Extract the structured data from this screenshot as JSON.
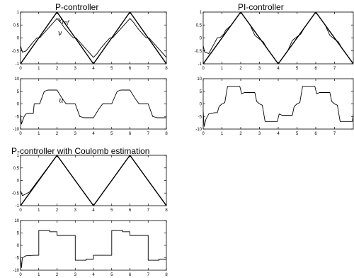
{
  "chart_data": [
    {
      "type": "line",
      "title": "P-controller",
      "xlim": [
        0,
        8
      ],
      "ylim": [
        -1,
        1
      ],
      "xticks": [
        "0",
        "1",
        "2",
        "3",
        "4",
        "5",
        "6",
        "7",
        "8"
      ],
      "yticks": [
        "-1",
        "-0.5",
        "0",
        "0.5",
        "1"
      ],
      "annotations": [
        "v_ref",
        "v"
      ],
      "series": [
        {
          "name": "v_ref",
          "x": [
            0,
            2,
            4,
            6,
            8
          ],
          "y": [
            -1,
            1,
            -1,
            1,
            -1
          ]
        },
        {
          "name": "v",
          "x": [
            0,
            0.1,
            0.3,
            0.7,
            0.9,
            1.05,
            1.3,
            2.0,
            2.2,
            2.4,
            2.7,
            2.9,
            3.05,
            3.3,
            4.0,
            4.2,
            4.4,
            4.7,
            4.9,
            5.05,
            5.3,
            6.0,
            6.2,
            6.4,
            6.7,
            6.9,
            7.05,
            7.3,
            8.0
          ],
          "y": [
            -0.3,
            -0.55,
            -0.5,
            -0.15,
            0,
            0,
            0.2,
            0.75,
            0.6,
            0.4,
            0.15,
            0,
            0,
            -0.2,
            -0.75,
            -0.6,
            -0.4,
            -0.15,
            0,
            0,
            0.2,
            0.75,
            0.6,
            0.4,
            0.15,
            0,
            0,
            -0.2,
            -0.75
          ]
        }
      ]
    },
    {
      "type": "line",
      "title": "PI-controller",
      "xlim": [
        0,
        8
      ],
      "ylim": [
        -1,
        1
      ],
      "xticks": [
        "0",
        "1",
        "2",
        "3",
        "4",
        "5",
        "6",
        "7"
      ],
      "yticks": [
        "-1",
        "-0.5",
        "0",
        "0.5",
        "1"
      ],
      "series": [
        {
          "name": "v_ref",
          "x": [
            0,
            2,
            4,
            6,
            8
          ],
          "y": [
            -1,
            1,
            -1,
            1,
            -1
          ]
        },
        {
          "name": "v",
          "x": [
            0,
            0.08,
            0.3,
            0.6,
            0.75,
            0.9,
            1.1,
            1.2,
            1.5,
            2.0,
            2.5,
            2.75,
            2.95,
            3.2,
            3.4,
            4.0,
            4.5,
            4.75,
            4.95,
            5.2,
            5.4,
            6.0,
            6.5,
            6.75,
            6.95,
            7.2,
            7.4,
            8.0
          ],
          "y": [
            -0.3,
            -0.55,
            -0.6,
            -0.2,
            0,
            0.02,
            0.15,
            0.3,
            0.5,
            1,
            0.5,
            0.1,
            -0.02,
            -0.15,
            -0.4,
            -1,
            -0.5,
            -0.1,
            0.02,
            0.15,
            0.4,
            1,
            0.5,
            0.1,
            -0.02,
            -0.15,
            -0.4,
            -1
          ]
        }
      ]
    },
    {
      "type": "line",
      "title": "",
      "xlim": [
        0,
        8
      ],
      "ylim": [
        -10,
        10
      ],
      "xticks": [
        "0",
        "1",
        "2",
        "3",
        "4",
        "5",
        "6",
        "7",
        "8"
      ],
      "yticks": [
        "-10",
        "-5",
        "0",
        "5",
        "10"
      ],
      "annotations": [
        "u"
      ],
      "series": [
        {
          "name": "u",
          "x": [
            0,
            0.05,
            0.1,
            0.2,
            0.3,
            0.5,
            0.7,
            0.75,
            1.0,
            1.05,
            1.3,
            1.5,
            1.9,
            2.0,
            2.3,
            2.5,
            2.9,
            3.0,
            3.25,
            3.5,
            3.9,
            4.0,
            4.3,
            4.5,
            4.9,
            5.0,
            5.3,
            5.5,
            5.9,
            6.0,
            6.3,
            6.5,
            6.9,
            7.0,
            7.25,
            7.5,
            8.0
          ],
          "y": [
            -4,
            -8,
            -7,
            -5,
            -4,
            -3.8,
            -3.8,
            0,
            0,
            0,
            5,
            5.5,
            5.5,
            5.5,
            2,
            0,
            0,
            0,
            -5,
            -5.5,
            -5.5,
            -5.5,
            -2,
            0,
            0,
            0,
            5,
            5.5,
            5.5,
            5.5,
            2,
            0,
            0,
            0,
            -5,
            -5.5,
            -5.5
          ]
        }
      ]
    },
    {
      "type": "line",
      "title": "",
      "xlim": [
        0,
        8
      ],
      "ylim": [
        -10,
        10
      ],
      "xticks": [
        "0",
        "1",
        "2",
        "3",
        "4",
        "5",
        "6",
        "7"
      ],
      "yticks": [
        "-10",
        "-5",
        "0",
        "5",
        "10"
      ],
      "series": [
        {
          "name": "u",
          "x": [
            0,
            0.05,
            0.15,
            0.3,
            0.6,
            0.75,
            0.85,
            1.0,
            1.15,
            1.3,
            1.7,
            1.95,
            2.05,
            2.2,
            2.5,
            2.75,
            2.85,
            3.0,
            3.15,
            3.3,
            3.7,
            3.95,
            4.05,
            4.2,
            4.5,
            4.75,
            4.85,
            5.0,
            5.15,
            5.3,
            5.7,
            5.95,
            6.05,
            6.2,
            6.5,
            6.75,
            6.85,
            7.0,
            7.15,
            7.3,
            7.7,
            7.95,
            8.0
          ],
          "y": [
            -3,
            -9,
            -6,
            -4,
            -3.5,
            -3.5,
            -1,
            0,
            0.5,
            7,
            7,
            7,
            4,
            4.5,
            4.5,
            4.5,
            1,
            0,
            -0.5,
            -7,
            -7,
            -7,
            -4,
            -4.5,
            -4.5,
            -4.5,
            -1,
            0,
            0.5,
            7,
            7,
            7,
            4,
            4.5,
            4.5,
            4.5,
            1,
            0,
            -0.5,
            -7,
            -7,
            -7,
            -4
          ]
        }
      ]
    },
    {
      "type": "line",
      "title": "P-controller with Coulomb estimation",
      "xlim": [
        0,
        8
      ],
      "ylim": [
        -1,
        1
      ],
      "xticks": [
        "0",
        "1",
        "2",
        "3",
        "4",
        "5",
        "6",
        "7",
        "8"
      ],
      "yticks": [
        "-1",
        "-0.5",
        "0",
        "0.5",
        "1"
      ],
      "series": [
        {
          "name": "v_ref",
          "x": [
            0,
            2,
            4,
            6,
            8
          ],
          "y": [
            -1,
            1,
            -1,
            1,
            -1
          ]
        },
        {
          "name": "v",
          "x": [
            0,
            0.1,
            0.25,
            0.5,
            2.0,
            4.0,
            6.0,
            8.0
          ],
          "y": [
            -0.4,
            -0.6,
            -0.55,
            -0.45,
            1,
            -1,
            1,
            -1
          ]
        }
      ]
    },
    {
      "type": "line",
      "title": "",
      "xlim": [
        0,
        8
      ],
      "ylim": [
        -10,
        10
      ],
      "xticks": [
        "0",
        "1",
        "2",
        "3",
        "4",
        "5",
        "6",
        "7",
        "8"
      ],
      "yticks": [
        "-10",
        "-5",
        "0",
        "5",
        "10"
      ],
      "series": [
        {
          "name": "u",
          "x": [
            0,
            0.05,
            0.1,
            0.3,
            0.8,
            1.0,
            1.0,
            1.6,
            1.6,
            2.0,
            2.0,
            2.5,
            2.5,
            3.0,
            3.0,
            3.6,
            3.6,
            4.0,
            4.0,
            4.5,
            4.5,
            5.0,
            5.0,
            5.6,
            5.6,
            6.0,
            6.0,
            6.5,
            6.5,
            7.0,
            7.0,
            7.6,
            7.6,
            8.0
          ],
          "y": [
            -4,
            -9,
            -5,
            -4.2,
            -4,
            -4,
            6,
            6,
            5.5,
            5.5,
            4,
            4,
            4,
            4,
            -6,
            -6,
            -5.5,
            -5.5,
            -4,
            -4,
            -4,
            -4,
            6,
            6,
            5.5,
            5.5,
            4,
            4,
            4,
            4,
            -6,
            -6,
            -5.5,
            -5.5
          ]
        }
      ]
    }
  ]
}
